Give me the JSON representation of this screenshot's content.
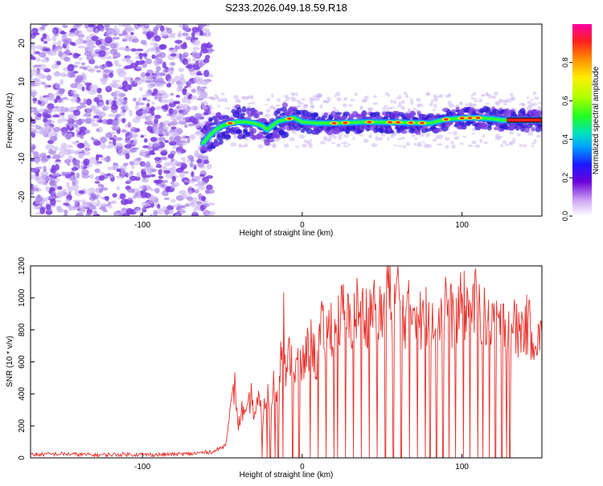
{
  "figure_title": "S233.2026.049.18.59.R18",
  "colors": {
    "cloud": "#7a3de0",
    "cloud_light": "#c9b3f2",
    "snr_line": "#e8302a",
    "axis": "#000000"
  },
  "chart_data": [
    {
      "type": "heatmap",
      "name": "spectrogram",
      "title": "",
      "xlabel": "Height of straight line (km)",
      "ylabel": "Frequency (Hz)",
      "xlim": [
        -170,
        150
      ],
      "ylim": [
        -25,
        25
      ],
      "xticks": [
        -100,
        0,
        100
      ],
      "yticks": [
        -20,
        -10,
        0,
        10,
        20
      ],
      "noise_region_x": [
        -170,
        -62
      ],
      "ridge": {
        "x": [
          -62,
          -58,
          -54,
          -50,
          -45,
          -40,
          -35,
          -30,
          -25,
          -22,
          -18,
          -15,
          -10,
          -5,
          0,
          10,
          20,
          40,
          60,
          80,
          90,
          100,
          110,
          120,
          125,
          130,
          150
        ],
        "y": [
          -6.0,
          -4.0,
          -2.5,
          -1.5,
          -0.8,
          -0.5,
          -0.5,
          -0.8,
          -1.5,
          -2.5,
          -1.2,
          -0.3,
          0.2,
          0.6,
          -0.5,
          -0.8,
          -0.8,
          -0.5,
          -0.6,
          -0.8,
          0.2,
          0.5,
          0.6,
          0.3,
          0.0,
          0.0,
          0.0
        ],
        "peak_amplitude": 0.95
      },
      "colorbar": {
        "label": "Normalized spectral amplitude",
        "range": [
          0,
          1
        ],
        "ticks": [
          0.0,
          0.2,
          0.4,
          0.6,
          0.8
        ]
      }
    },
    {
      "type": "line",
      "name": "snr",
      "title": "",
      "xlabel": "Height of straight line (km)",
      "ylabel": "SNR (10 * v/v)",
      "xlim": [
        -170,
        150
      ],
      "ylim": [
        0,
        1200
      ],
      "xticks": [
        -100,
        0,
        100
      ],
      "yticks": [
        0,
        200,
        400,
        600,
        800,
        1000,
        1200
      ],
      "series": [
        {
          "name": "SNR",
          "x": [
            -170,
            -150,
            -130,
            -110,
            -90,
            -70,
            -55,
            -48,
            -45,
            -42,
            -40,
            -38,
            -35,
            -32,
            -30,
            -27,
            -25,
            -22,
            -20,
            -18,
            -16,
            -14,
            -12,
            -10,
            -8,
            -5,
            -2,
            0,
            3,
            6,
            9,
            12,
            15,
            18,
            20,
            25,
            30,
            35,
            40,
            45,
            50,
            53,
            56,
            60,
            65,
            70,
            75,
            80,
            85,
            90,
            95,
            100,
            105,
            110,
            115,
            120,
            125,
            130,
            135,
            140,
            145,
            150
          ],
          "values": [
            20,
            25,
            18,
            22,
            20,
            25,
            40,
            80,
            300,
            480,
            200,
            320,
            260,
            420,
            280,
            380,
            240,
            450,
            300,
            520,
            400,
            620,
            1030,
            480,
            700,
            560,
            650,
            580,
            700,
            760,
            620,
            850,
            780,
            900,
            820,
            960,
            880,
            1000,
            940,
            1020,
            900,
            1200,
            980,
            1090,
            920,
            1030,
            880,
            1000,
            930,
            1060,
            880,
            1020,
            960,
            1050,
            880,
            960,
            860,
            920,
            830,
            880,
            820,
            760
          ]
        }
      ],
      "dropout_x": [
        -25,
        -22,
        -20,
        -17,
        -15,
        -12,
        -6,
        -2,
        5,
        10,
        15,
        20,
        22,
        27,
        32,
        37,
        42,
        47,
        52,
        57,
        62,
        67,
        72,
        77,
        80,
        84,
        88,
        92,
        96,
        101,
        105,
        110,
        113,
        117,
        121,
        125,
        128,
        130
      ]
    }
  ]
}
